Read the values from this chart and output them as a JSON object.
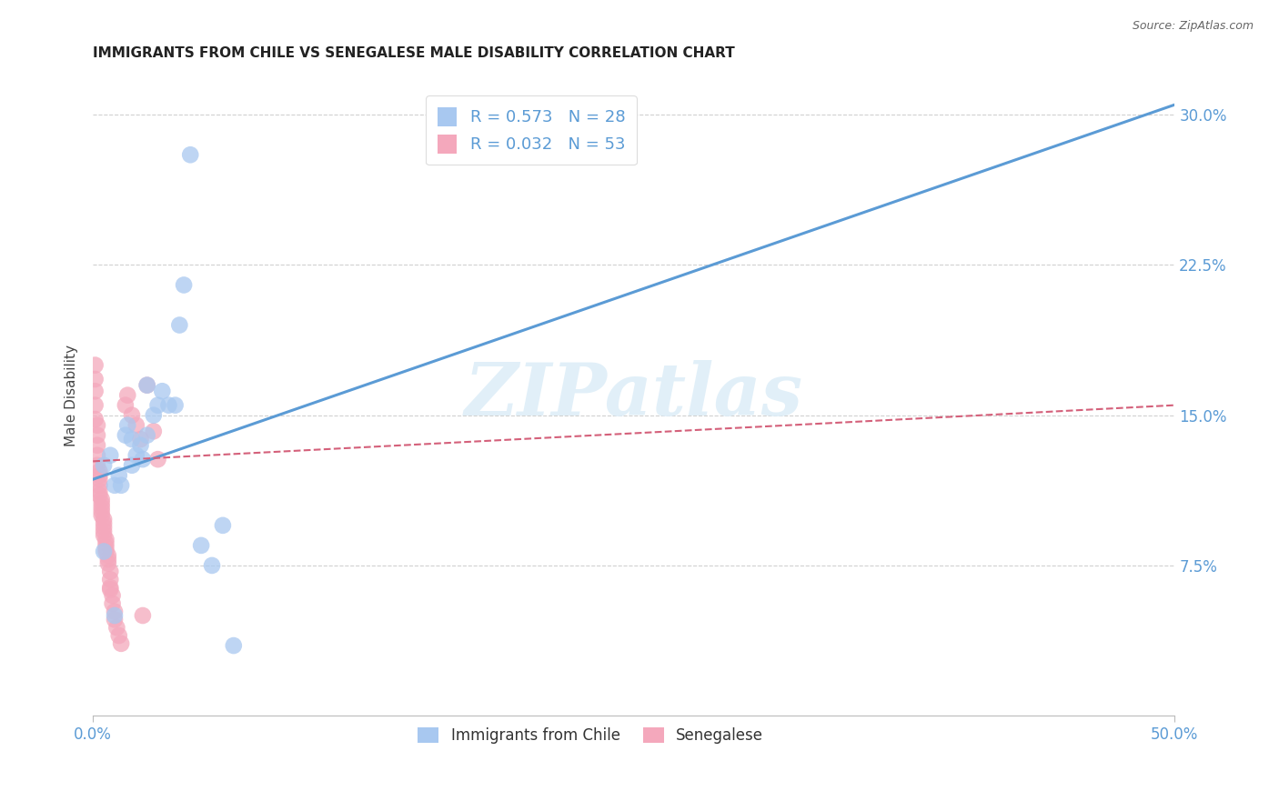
{
  "title": "IMMIGRANTS FROM CHILE VS SENEGALESE MALE DISABILITY CORRELATION CHART",
  "source": "Source: ZipAtlas.com",
  "ylabel": "Male Disability",
  "xlim": [
    0.0,
    0.5
  ],
  "ylim": [
    0.0,
    0.32
  ],
  "yticks": [
    0.075,
    0.15,
    0.225,
    0.3
  ],
  "ytick_labels": [
    "7.5%",
    "15.0%",
    "22.5%",
    "30.0%"
  ],
  "xtick_vals": [
    0.0,
    0.5
  ],
  "xtick_labels": [
    "0.0%",
    "50.0%"
  ],
  "blue_color": "#a8c8f0",
  "pink_color": "#f4a8bc",
  "blue_line_color": "#5b9bd5",
  "pink_line_color": "#d4607a",
  "tick_label_color": "#5b9bd5",
  "legend_blue_label": "R = 0.573   N = 28",
  "legend_pink_label": "R = 0.032   N = 53",
  "legend1_label": "Immigrants from Chile",
  "legend2_label": "Senegalese",
  "blue_x": [
    0.005,
    0.008,
    0.01,
    0.012,
    0.013,
    0.015,
    0.016,
    0.018,
    0.02,
    0.022,
    0.023,
    0.025,
    0.028,
    0.03,
    0.032,
    0.035,
    0.038,
    0.04,
    0.042,
    0.045,
    0.05,
    0.055,
    0.06,
    0.065,
    0.005,
    0.01,
    0.018,
    0.025
  ],
  "blue_y": [
    0.125,
    0.13,
    0.115,
    0.12,
    0.115,
    0.14,
    0.145,
    0.138,
    0.13,
    0.135,
    0.128,
    0.165,
    0.15,
    0.155,
    0.162,
    0.155,
    0.155,
    0.195,
    0.215,
    0.28,
    0.085,
    0.075,
    0.095,
    0.035,
    0.082,
    0.05,
    0.125,
    0.14
  ],
  "pink_x": [
    0.001,
    0.001,
    0.001,
    0.001,
    0.001,
    0.002,
    0.002,
    0.002,
    0.002,
    0.002,
    0.003,
    0.003,
    0.003,
    0.003,
    0.003,
    0.003,
    0.004,
    0.004,
    0.004,
    0.004,
    0.004,
    0.005,
    0.005,
    0.005,
    0.005,
    0.005,
    0.006,
    0.006,
    0.006,
    0.006,
    0.007,
    0.007,
    0.007,
    0.008,
    0.008,
    0.008,
    0.009,
    0.009,
    0.01,
    0.01,
    0.011,
    0.012,
    0.013,
    0.015,
    0.016,
    0.018,
    0.02,
    0.022,
    0.023,
    0.025,
    0.028,
    0.03,
    0.008
  ],
  "pink_y": [
    0.175,
    0.168,
    0.162,
    0.155,
    0.148,
    0.145,
    0.14,
    0.135,
    0.13,
    0.125,
    0.122,
    0.12,
    0.118,
    0.115,
    0.112,
    0.11,
    0.108,
    0.106,
    0.104,
    0.102,
    0.1,
    0.098,
    0.096,
    0.094,
    0.092,
    0.09,
    0.088,
    0.086,
    0.084,
    0.082,
    0.08,
    0.078,
    0.076,
    0.072,
    0.068,
    0.064,
    0.06,
    0.056,
    0.052,
    0.048,
    0.044,
    0.04,
    0.036,
    0.155,
    0.16,
    0.15,
    0.145,
    0.138,
    0.05,
    0.165,
    0.142,
    0.128,
    0.063
  ],
  "blue_trendline_x": [
    0.0,
    0.5
  ],
  "blue_trendline_y": [
    0.118,
    0.305
  ],
  "pink_trendline_x": [
    0.0,
    0.5
  ],
  "pink_trendline_y": [
    0.127,
    0.155
  ],
  "watermark": "ZIPatlas",
  "watermark_color": "#deeef8",
  "background_color": "#ffffff",
  "grid_color": "#d0d0d0"
}
